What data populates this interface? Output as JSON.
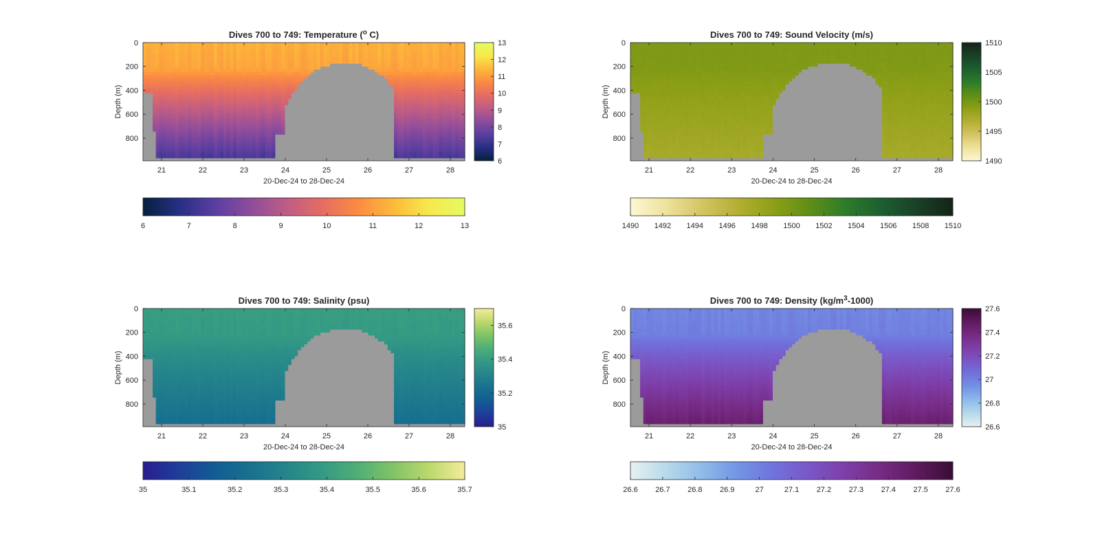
{
  "chart_data": [
    {
      "type": "heatmap",
      "title": "Dives 700 to 749: Temperature (",
      "title_sup": "o",
      "title_suffix": " C)",
      "xlabel": "20-Dec-24 to 28-Dec-24",
      "ylabel": "Depth (m)",
      "x_ticks": [
        "21",
        "22",
        "23",
        "24",
        "25",
        "26",
        "27",
        "28"
      ],
      "y_ticks": [
        "0",
        "200",
        "400",
        "600",
        "800"
      ],
      "xlim": [
        20.55,
        28.35
      ],
      "ylim": [
        0,
        990
      ],
      "colorbar_ticks": [
        "6",
        "7",
        "8",
        "9",
        "10",
        "11",
        "12",
        "13"
      ],
      "horizontal_colorbar_ticks": [
        "6",
        "7",
        "8",
        "9",
        "10",
        "11",
        "12",
        "13"
      ],
      "color_range": [
        6,
        13
      ],
      "colormap": [
        "#05213d",
        "#262f84",
        "#5a3ea0",
        "#8d4c9c",
        "#bd5c86",
        "#e56c63",
        "#fb8b41",
        "#fdb93a",
        "#f7e94c",
        "#e6fa62"
      ],
      "surface_value": 11.3,
      "deep_value": 7.2
    },
    {
      "type": "heatmap",
      "title": "Dives 700 to 749: Sound Velocity (m/s)",
      "xlabel": "20-Dec-24 to 28-Dec-24",
      "ylabel": "Depth (m)",
      "x_ticks": [
        "21",
        "22",
        "23",
        "24",
        "25",
        "26",
        "27",
        "28"
      ],
      "y_ticks": [
        "0",
        "200",
        "400",
        "600",
        "800"
      ],
      "xlim": [
        20.55,
        28.35
      ],
      "ylim": [
        0,
        990
      ],
      "colorbar_ticks": [
        "1490",
        "1495",
        "1500",
        "1505",
        "1510"
      ],
      "horizontal_colorbar_ticks": [
        "1490",
        "1492",
        "1494",
        "1496",
        "1498",
        "1500",
        "1502",
        "1504",
        "1506",
        "1508",
        "1510"
      ],
      "color_range": [
        1490,
        1510
      ],
      "colormap": [
        "#fef7d4",
        "#eee29b",
        "#d4c463",
        "#b3af33",
        "#8d9f16",
        "#5f8e16",
        "#2d7c2a",
        "#1c5f30",
        "#1a4026",
        "#142418"
      ],
      "surface_value": 1499.6,
      "deep_value": 1497.3
    },
    {
      "type": "heatmap",
      "title": "Dives 700 to 749: Salinity (psu)",
      "xlabel": "20-Dec-24 to 28-Dec-24",
      "ylabel": "Depth (m)",
      "x_ticks": [
        "21",
        "22",
        "23",
        "24",
        "25",
        "26",
        "27",
        "28"
      ],
      "y_ticks": [
        "0",
        "200",
        "400",
        "600",
        "800"
      ],
      "xlim": [
        20.55,
        28.35
      ],
      "ylim": [
        0,
        990
      ],
      "colorbar_ticks": [
        "35",
        "35.2",
        "35.4",
        "35.6"
      ],
      "horizontal_colorbar_ticks": [
        "35",
        "35.1",
        "35.2",
        "35.3",
        "35.4",
        "35.5",
        "35.6",
        "35.7"
      ],
      "color_range": [
        35,
        35.7
      ],
      "colormap": [
        "#2a1d8f",
        "#1e3e9a",
        "#125c94",
        "#18718f",
        "#25858b",
        "#349a84",
        "#4faf76",
        "#80c466",
        "#bcd86d",
        "#f4ec9a"
      ],
      "surface_value": 35.4,
      "deep_value": 35.22
    },
    {
      "type": "heatmap",
      "title": "Dives 700 to 749: Density (kg/m",
      "title_sup": "3",
      "title_suffix": "-1000)",
      "xlabel": "20-Dec-24 to 28-Dec-24",
      "ylabel": "Depth (m)",
      "x_ticks": [
        "21",
        "22",
        "23",
        "24",
        "25",
        "26",
        "27",
        "28"
      ],
      "y_ticks": [
        "0",
        "200",
        "400",
        "600",
        "800"
      ],
      "xlim": [
        20.55,
        28.35
      ],
      "ylim": [
        0,
        990
      ],
      "colorbar_ticks": [
        "26.6",
        "26.8",
        "27",
        "27.2",
        "27.4",
        "27.6"
      ],
      "horizontal_colorbar_ticks": [
        "26.6",
        "26.7",
        "26.8",
        "26.9",
        "27",
        "27.1",
        "27.2",
        "27.3",
        "27.4",
        "27.5",
        "27.6"
      ],
      "color_range": [
        26.6,
        27.6
      ],
      "colormap": [
        "#e6f1f1",
        "#b7d9ea",
        "#8fbbe9",
        "#7394e4",
        "#7073dc",
        "#7a56c6",
        "#7e3ea8",
        "#762a83",
        "#5e1a5e",
        "#3a0c35"
      ],
      "surface_value": 26.98,
      "deep_value": 27.45
    }
  ],
  "colors": {
    "no_data": "#9b9b9b",
    "axis": "#262626"
  }
}
